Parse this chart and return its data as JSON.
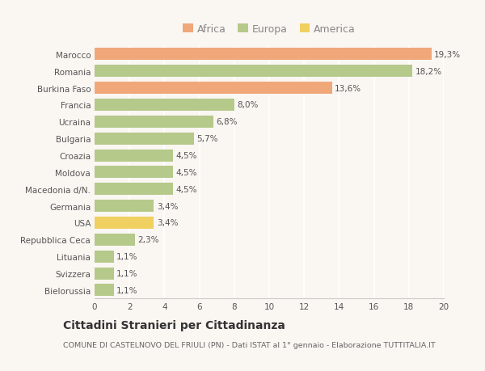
{
  "categories": [
    "Bielorussia",
    "Svizzera",
    "Lituania",
    "Repubblica Ceca",
    "USA",
    "Germania",
    "Macedonia d/N.",
    "Moldova",
    "Croazia",
    "Bulgaria",
    "Ucraina",
    "Francia",
    "Burkina Faso",
    "Romania",
    "Marocco"
  ],
  "values": [
    1.1,
    1.1,
    1.1,
    2.3,
    3.4,
    3.4,
    4.5,
    4.5,
    4.5,
    5.7,
    6.8,
    8.0,
    13.6,
    18.2,
    19.3
  ],
  "colors": [
    "#b5c98a",
    "#b5c98a",
    "#b5c98a",
    "#b5c98a",
    "#f0d060",
    "#b5c98a",
    "#b5c98a",
    "#b5c98a",
    "#b5c98a",
    "#b5c98a",
    "#b5c98a",
    "#b5c98a",
    "#f0a87a",
    "#b5c98a",
    "#f0a87a"
  ],
  "labels": [
    "1,1%",
    "1,1%",
    "1,1%",
    "2,3%",
    "3,4%",
    "3,4%",
    "4,5%",
    "4,5%",
    "4,5%",
    "5,7%",
    "6,8%",
    "8,0%",
    "13,6%",
    "18,2%",
    "19,3%"
  ],
  "xlim": [
    0,
    20
  ],
  "xticks": [
    0,
    2,
    4,
    6,
    8,
    10,
    12,
    14,
    16,
    18,
    20
  ],
  "legend": {
    "Africa": "#f0a87a",
    "Europa": "#b5c98a",
    "America": "#f0d060"
  },
  "title": "Cittadini Stranieri per Cittadinanza",
  "subtitle": "COMUNE DI CASTELNOVO DEL FRIULI (PN) - Dati ISTAT al 1° gennaio - Elaborazione TUTTITALIA.IT",
  "background_color": "#faf6f2",
  "grid_color": "#ffffff",
  "bar_height": 0.72,
  "label_fontsize": 7.5,
  "tick_fontsize": 7.5,
  "legend_fontsize": 9.0,
  "title_fontsize": 10,
  "subtitle_fontsize": 6.8
}
